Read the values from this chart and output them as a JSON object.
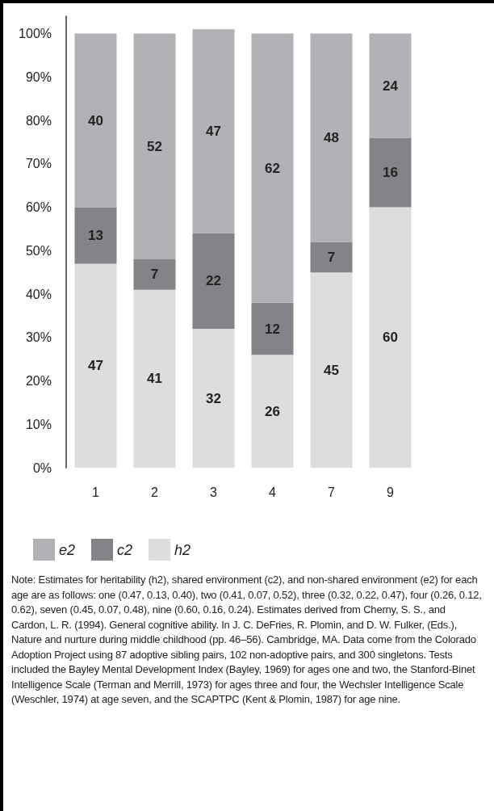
{
  "chart_data": {
    "type": "bar",
    "stacked": true,
    "categories": [
      "1",
      "2",
      "3",
      "4",
      "7",
      "9"
    ],
    "series": [
      {
        "name": "h2",
        "color": "#dcdddf",
        "values": [
          47,
          41,
          32,
          26,
          45,
          60
        ]
      },
      {
        "name": "c2",
        "color": "#838487",
        "values": [
          13,
          7,
          22,
          12,
          7,
          16
        ]
      },
      {
        "name": "e2",
        "color": "#b1b2b5",
        "values": [
          40,
          52,
          47,
          62,
          48,
          24
        ]
      }
    ],
    "ylim": [
      0,
      104
    ],
    "yticks": [
      {
        "value": 0,
        "label": "0%"
      },
      {
        "value": 10,
        "label": "10%"
      },
      {
        "value": 20,
        "label": "20%"
      },
      {
        "value": 30,
        "label": "30%"
      },
      {
        "value": 40,
        "label": "40%"
      },
      {
        "value": 50,
        "label": "50%"
      },
      {
        "value": 60,
        "label": "60%"
      },
      {
        "value": 70,
        "label": "70%"
      },
      {
        "value": 80,
        "label": "80%"
      },
      {
        "value": 90,
        "label": "90%"
      },
      {
        "value": 100,
        "label": "100%"
      }
    ],
    "data_labels": true,
    "grid": false,
    "legend": "bottom left",
    "annotations": [
      "Note: Estimates for heritability (h2), shared environment (c2), and non-shared environment (e2) for each age are as follows: one (0.47, 0.13, 0.40), two (0.41, 0.07, 0.52), three (0.32, 0.22, 0.47), four (0.26, 0.12, 0.62), seven (0.45, 0.07, 0.48), nine (0.60, 0.16, 0.24). Estimates derived from Cherny, S. S., and Cardon, L. R. (1994). General cognitive ability. In J. C. DeFries, R. Plomin, and D. W. Fulker, (Eds.), Nature and nurture during middle childhood (pp. 46–56). Cambridge, MA. Data come from the Colorado Adoption Project using 87 adoptive sibling pairs, 102 non-adoptive pairs, and 300 singletons. Tests included the Bayley Mental Development Index (Bayley, 1969) for ages one and two, the Stanford-Binet Intelligence Scale (Terman and Merrill, 1973) for ages three and four, the Wechsler Intelligence Scale (Weschler, 1974) at age seven, and the SCAPTPC (Kent & Plomin, 1987) for age nine."
    ]
  }
}
